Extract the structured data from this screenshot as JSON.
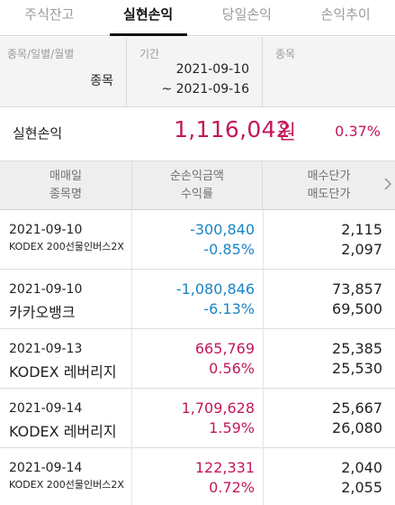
{
  "tabs": [
    {
      "label": "주식잔고"
    },
    {
      "label": "실현손익"
    },
    {
      "label": "당일손익"
    },
    {
      "label": "손익추이"
    }
  ],
  "filter": {
    "type_header": "종목/일별/월별",
    "type_value": "종목",
    "period_header": "기간",
    "period_start": "2021-09-10",
    "period_end": "~ 2021-09-16",
    "stock_header": "종목"
  },
  "summary": {
    "label": "실현손익",
    "amount": "1,116,042",
    "unit": "원",
    "rate": "0.37%"
  },
  "columns": {
    "c1_line1": "매매일",
    "c1_line2": "종목명",
    "c2_line1": "순손익금액",
    "c2_line2": "수익률",
    "c3_line1": "매수단가",
    "c3_line2": "매도단가"
  },
  "rows": [
    {
      "date": "2021-09-10",
      "name": "KODEX 200선물인버스2X",
      "amount": "-300,840",
      "rate": "-0.85%",
      "buy": "2,115",
      "sell": "2,097"
    },
    {
      "date": "2021-09-10",
      "name": "카카오뱅크",
      "amount": "-1,080,846",
      "rate": "-6.13%",
      "buy": "73,857",
      "sell": "69,500"
    },
    {
      "date": "2021-09-13",
      "name": "KODEX 레버리지",
      "amount": "665,769",
      "rate": "0.56%",
      "buy": "25,385",
      "sell": "25,530"
    },
    {
      "date": "2021-09-14",
      "name": "KODEX 레버리지",
      "amount": "1,709,628",
      "rate": "1.59%",
      "buy": "25,667",
      "sell": "26,080"
    },
    {
      "date": "2021-09-14",
      "name": "KODEX 200선물인버스2X",
      "amount": "122,331",
      "rate": "0.72%",
      "buy": "2,040",
      "sell": "2,055"
    }
  ],
  "colors": {
    "profit": "#c2185b",
    "loss": "#1a84c7"
  },
  "icons": {
    "scroll_right": "chevron-right-icon"
  }
}
